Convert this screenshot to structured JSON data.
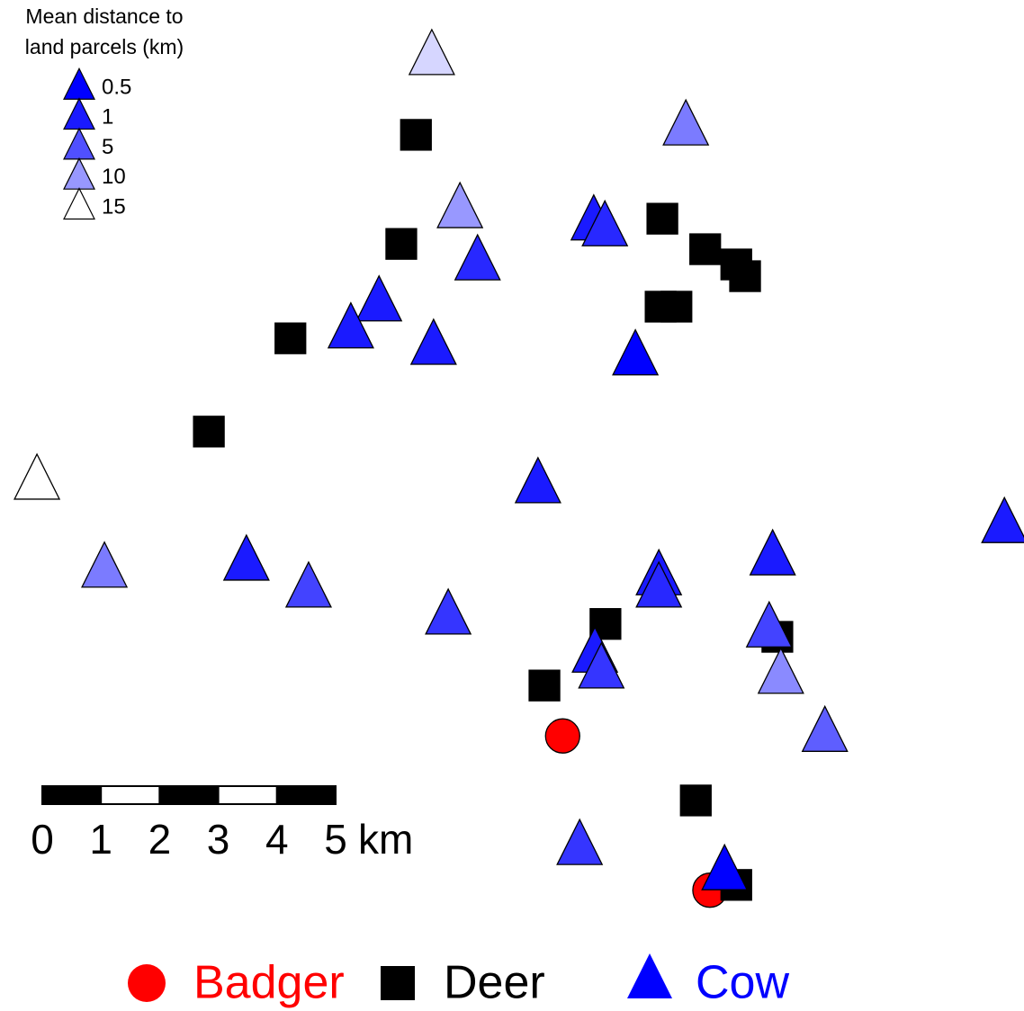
{
  "chart_data": {
    "type": "scatter",
    "distance_legend": {
      "title": [
        "Mean distance to",
        "land parcels (km)"
      ],
      "values": [
        0.5,
        1,
        5,
        10,
        15
      ],
      "colors": [
        "#0000ff",
        "#1a1aff",
        "#5050ff",
        "#9898ff",
        "#ffffff"
      ]
    },
    "scale_bar": {
      "ticks": [
        0,
        1,
        2,
        3,
        4,
        5
      ],
      "unit": "km"
    },
    "series": [
      {
        "name": "Badger",
        "color": "#ff0000",
        "marker": "circle",
        "x": [
          9.59,
          12.1
        ],
        "y": [
          4.69,
          2.06
        ]
      },
      {
        "name": "Deer",
        "color": "#000000",
        "marker": "square",
        "x": [
          7.09,
          11.29,
          6.84,
          12.02,
          12.55,
          12.7,
          11.26,
          11.53,
          4.95,
          3.56,
          10.32,
          13.25,
          9.28,
          11.86,
          12.55
        ],
        "y": [
          14.94,
          13.51,
          13.08,
          12.99,
          12.73,
          12.53,
          12.01,
          12.01,
          11.47,
          9.88,
          6.6,
          6.38,
          5.55,
          3.59,
          2.15
        ]
      },
      {
        "name": "Cow",
        "color": "#0000ff",
        "marker": "triangle",
        "x": [
          7.36,
          11.69,
          7.84,
          10.12,
          10.31,
          8.14,
          6.46,
          5.98,
          7.39,
          10.83,
          9.17,
          0.63,
          17.12,
          1.78,
          4.2,
          5.26,
          7.64,
          11.23,
          11.23,
          13.17,
          13.11,
          13.31,
          14.06,
          10.14,
          10.25,
          9.88,
          12.35
        ],
        "y": [
          16.29,
          15.09,
          13.68,
          13.47,
          13.37,
          12.79,
          12.09,
          11.63,
          11.35,
          11.17,
          8.99,
          9.05,
          8.31,
          7.55,
          7.67,
          7.21,
          6.75,
          7.42,
          7.21,
          7.76,
          6.53,
          5.74,
          4.75,
          6.1,
          5.83,
          2.82,
          2.39
        ],
        "distance": [
          13,
          8,
          10,
          1,
          2,
          2,
          1,
          1,
          1,
          0.5,
          1,
          15,
          1,
          8,
          1,
          4,
          3,
          1,
          2,
          1,
          4,
          9,
          6,
          1,
          3,
          3,
          0.5
        ]
      }
    ]
  }
}
